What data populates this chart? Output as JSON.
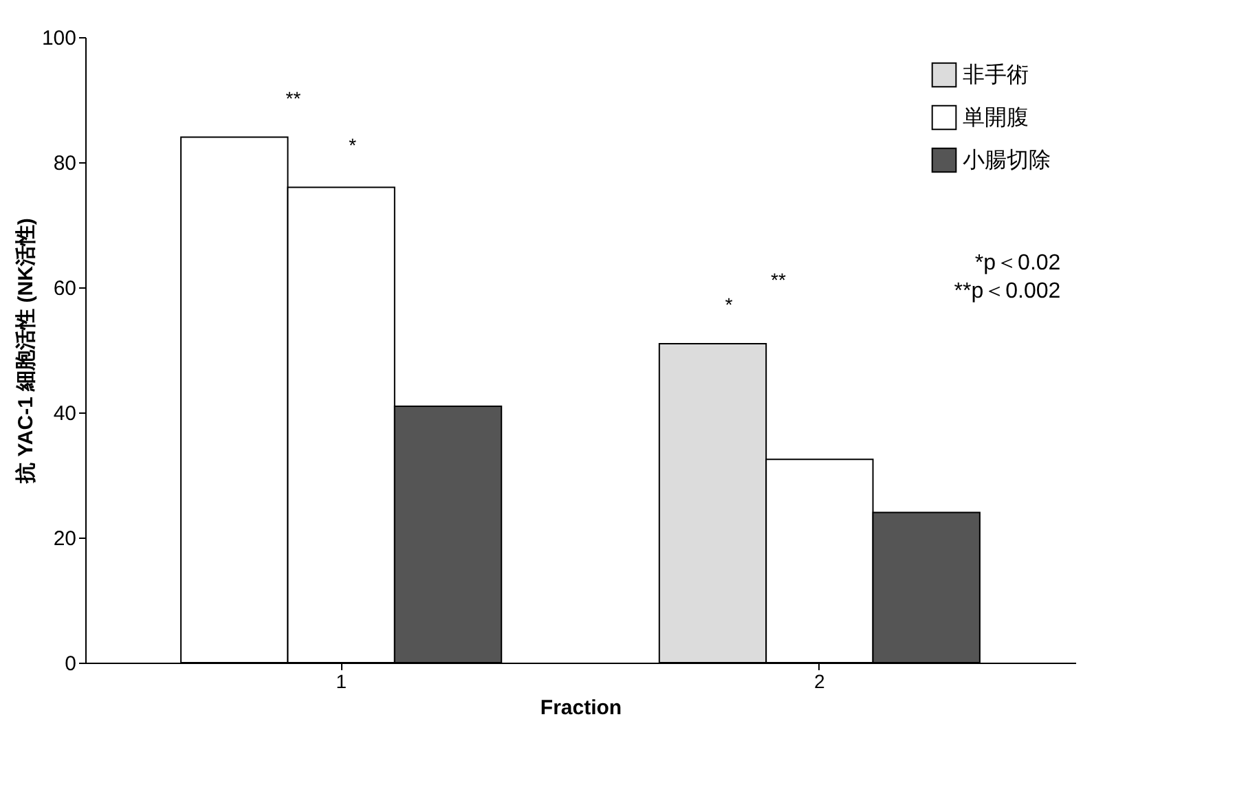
{
  "chart_data": {
    "type": "bar",
    "categories": [
      "1",
      "2"
    ],
    "series": [
      {
        "name": "非手術",
        "color": "#dcdcdc",
        "colors": [
          "#ffffff",
          "#dcdcdc"
        ],
        "values": [
          84,
          51
        ]
      },
      {
        "name": "単開腹",
        "color": "#ffffff",
        "values": [
          76,
          32.5
        ]
      },
      {
        "name": "小腸切除",
        "color": "#555555",
        "values": [
          41,
          24
        ]
      }
    ],
    "xlabel": "Fraction",
    "ylabel": "抗 YAC-1 細胞活性 (NK活性)",
    "ylim": [
      0,
      100
    ],
    "yticks": [
      0,
      20,
      40,
      60,
      80,
      100
    ],
    "grid": false,
    "legend": "top right",
    "annotations": [
      "**",
      "*",
      "*",
      "**",
      "*p＜0.02",
      "**p＜0.002"
    ]
  }
}
